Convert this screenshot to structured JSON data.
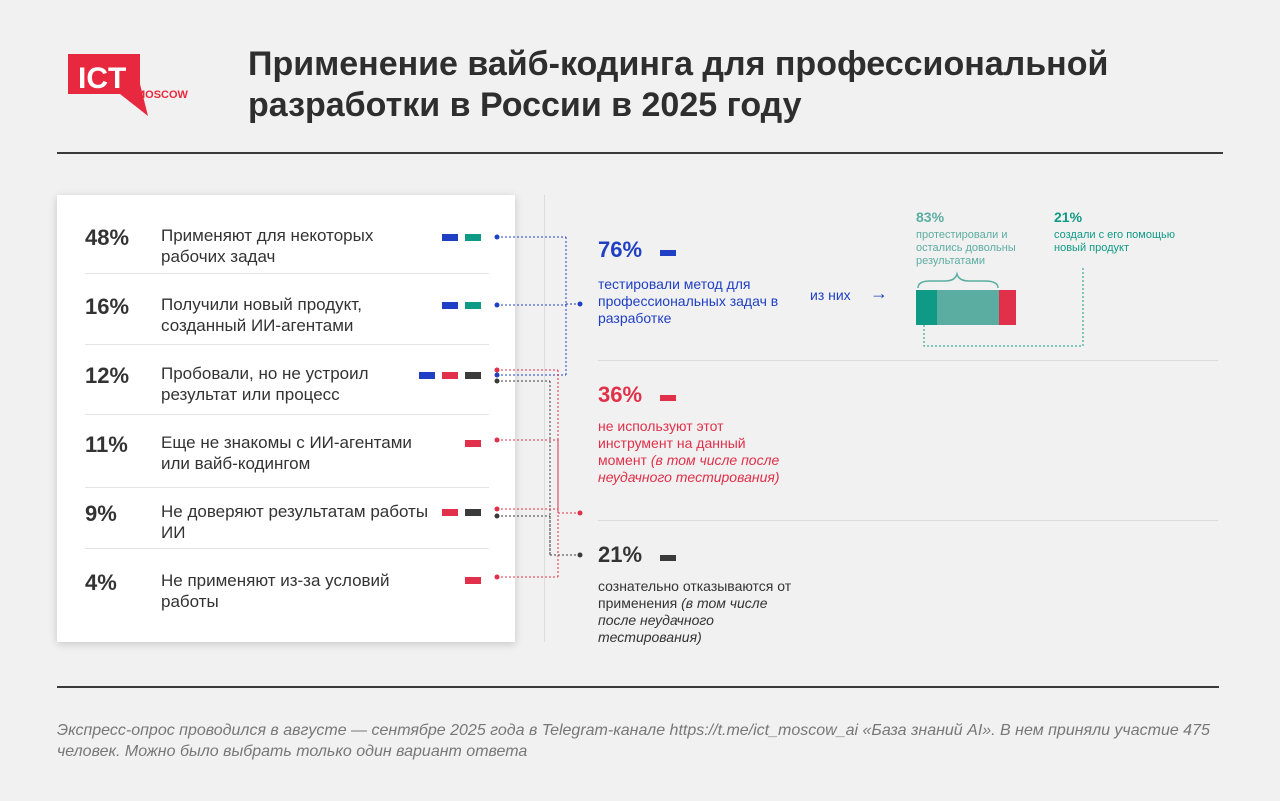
{
  "brand": {
    "logo_text": "ICT",
    "logo_sub": "MOSCOW"
  },
  "title_line1": "Применение вайб-кодинга для профессиональной",
  "title_line2": "разработки в России в 2025 году",
  "colors": {
    "blue": "#1f3fc4",
    "teal": "#0f9a85",
    "red": "#e0304a",
    "dark": "#3a3a3a",
    "teal_light": "#5cada1"
  },
  "chart_data": {
    "type": "table",
    "answers": [
      {
        "pct": "48%",
        "label": "Применяют для некоторых рабочих задач",
        "groups": [
          "blue",
          "teal"
        ]
      },
      {
        "pct": "16%",
        "label": "Получили новый продукт, созданный ИИ-агентами",
        "groups": [
          "blue",
          "teal"
        ]
      },
      {
        "pct": "12%",
        "label": "Пробовали, но не устроил результат или процесс",
        "groups": [
          "blue",
          "red",
          "dark"
        ]
      },
      {
        "pct": "11%",
        "label": "Еще не знакомы с ИИ-агентами или вайб-кодингом",
        "groups": [
          "red"
        ]
      },
      {
        "pct": "9%",
        "label": "Не доверяют результатам работы ИИ",
        "groups": [
          "red",
          "dark"
        ]
      },
      {
        "pct": "4%",
        "label": "Не применяют из-за условий работы",
        "groups": [
          "red"
        ]
      }
    ],
    "summary": [
      {
        "pct": "76%",
        "color": "blue",
        "text": "тестировали метод для профессиональных задач в разработке",
        "italic": ""
      },
      {
        "pct": "36%",
        "color": "red",
        "text": "не используют этот инструмент на данный момент",
        "italic": "(в том числе после неудачного тестирования)"
      },
      {
        "pct": "21%",
        "color": "dark",
        "text": "сознательно отказываются от применения",
        "italic": "(в том числе после неудачного тестирования)"
      }
    ],
    "breakdown": {
      "lead": "из них",
      "satisfied": {
        "pct": "83%",
        "text": "протестировали и остались довольны результатами",
        "value": 83
      },
      "product": {
        "pct": "21%",
        "text": "создали с его помощью новый продукт",
        "value": 21
      },
      "unsatisfied_value": 17
    }
  },
  "footnote": "Экспресс-опрос проводился в августе — сентябре 2025 года в Telegram-канале https://t.me/ict_moscow_ai «База знаний AI». В нем приняли участие 475 человек. Можно было выбрать только один вариант ответа"
}
